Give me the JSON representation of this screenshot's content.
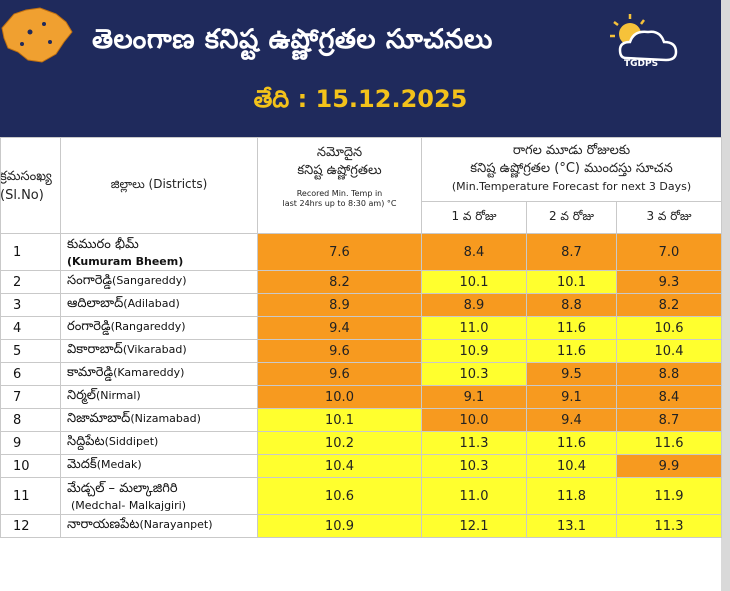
{
  "header": {
    "title": "తెలంగాణ కనిష్ట ఉష్ణోగ్రతల సూచనలు",
    "date_label": "తేది : 15.12.2025",
    "logo_text": "TGDPS"
  },
  "colors": {
    "orange": "#f79a1f",
    "yellow": "#ffff2e",
    "header_bg": "#1f2a5c",
    "date": "#f3c21a"
  },
  "table": {
    "col_sl": [
      "క్రమసంఖ్య",
      "(Sl.No)"
    ],
    "col_district": "జిల్లాలు (Districts)",
    "col_recorded_te": [
      "నమోదైన",
      "కనిష్ట ఉష్ణోగ్రతలు"
    ],
    "col_recorded_en": [
      "Recored Min. Temp in",
      "last 24hrs up to 8:30 am) °C"
    ],
    "col_forecast_te": [
      "రాగల మూడు రోజులకు",
      "కనిష్ట ఉష్ణోగ్రతల (°C) ముందస్తు సూచన"
    ],
    "col_forecast_en": "(Min.Temperature Forecast for next 3 Days)",
    "days": [
      "1 వ రోజు",
      "2 వ రోజు",
      "3 వ రోజు"
    ],
    "rows": [
      {
        "sl": "1",
        "te": "కుమురం భీమ్",
        "en": "(Kumuram Bheem)",
        "rec": "7.6",
        "d1": "8.4",
        "d2": "8.7",
        "d3": "7.0",
        "c": [
          "or",
          "or",
          "or",
          "or"
        ]
      },
      {
        "sl": "2",
        "te": "సంగారెడ్డి",
        "en": "(Sangareddy)",
        "rec": "8.2",
        "d1": "10.1",
        "d2": "10.1",
        "d3": "9.3",
        "c": [
          "or",
          "ye",
          "ye",
          "or"
        ]
      },
      {
        "sl": "3",
        "te": "ఆదిలాబాద్",
        "en": "(Adilabad)",
        "rec": "8.9",
        "d1": "8.9",
        "d2": "8.8",
        "d3": "8.2",
        "c": [
          "or",
          "or",
          "or",
          "or"
        ]
      },
      {
        "sl": "4",
        "te": "రంగారెడ్డి",
        "en": "(Rangareddy)",
        "rec": "9.4",
        "d1": "11.0",
        "d2": "11.6",
        "d3": "10.6",
        "c": [
          "or",
          "ye",
          "ye",
          "ye"
        ]
      },
      {
        "sl": "5",
        "te": "వికారాబాద్",
        "en": "(Vikarabad)",
        "rec": "9.6",
        "d1": "10.9",
        "d2": "11.6",
        "d3": "10.4",
        "c": [
          "or",
          "ye",
          "ye",
          "ye"
        ]
      },
      {
        "sl": "6",
        "te": "కామారెడ్డి",
        "en": "(Kamareddy)",
        "rec": "9.6",
        "d1": "10.3",
        "d2": "9.5",
        "d3": "8.8",
        "c": [
          "or",
          "ye",
          "or",
          "or"
        ]
      },
      {
        "sl": "7",
        "te": "నిర్మల్",
        "en": "(Nirmal)",
        "rec": "10.0",
        "d1": "9.1",
        "d2": "9.1",
        "d3": "8.4",
        "c": [
          "or",
          "or",
          "or",
          "or"
        ]
      },
      {
        "sl": "8",
        "te": "నిజామాబాద్",
        "en": "(Nizamabad)",
        "rec": "10.1",
        "d1": "10.0",
        "d2": "9.4",
        "d3": "8.7",
        "c": [
          "ye",
          "or",
          "or",
          "or"
        ]
      },
      {
        "sl": "9",
        "te": "సిద్దిపేట",
        "en": "(Siddipet)",
        "rec": "10.2",
        "d1": "11.3",
        "d2": "11.6",
        "d3": "11.6",
        "c": [
          "ye",
          "ye",
          "ye",
          "ye"
        ]
      },
      {
        "sl": "10",
        "te": "మెదక్",
        "en": "(Medak)",
        "rec": "10.4",
        "d1": "10.3",
        "d2": "10.4",
        "d3": "9.9",
        "c": [
          "ye",
          "ye",
          "ye",
          "or"
        ]
      },
      {
        "sl": "11",
        "te": "మేడ్చల్ – మల్కాజిగిరి",
        "en": "(Medchal- Malkajgiri)",
        "rec": "10.6",
        "d1": "11.0",
        "d2": "11.8",
        "d3": "11.9",
        "c": [
          "ye",
          "ye",
          "ye",
          "ye"
        ]
      },
      {
        "sl": "12",
        "te": "నారాయణపేట",
        "en": "(Narayanpet)",
        "rec": "10.9",
        "d1": "12.1",
        "d2": "13.1",
        "d3": "11.3",
        "c": [
          "ye",
          "ye",
          "ye",
          "ye"
        ]
      }
    ]
  }
}
